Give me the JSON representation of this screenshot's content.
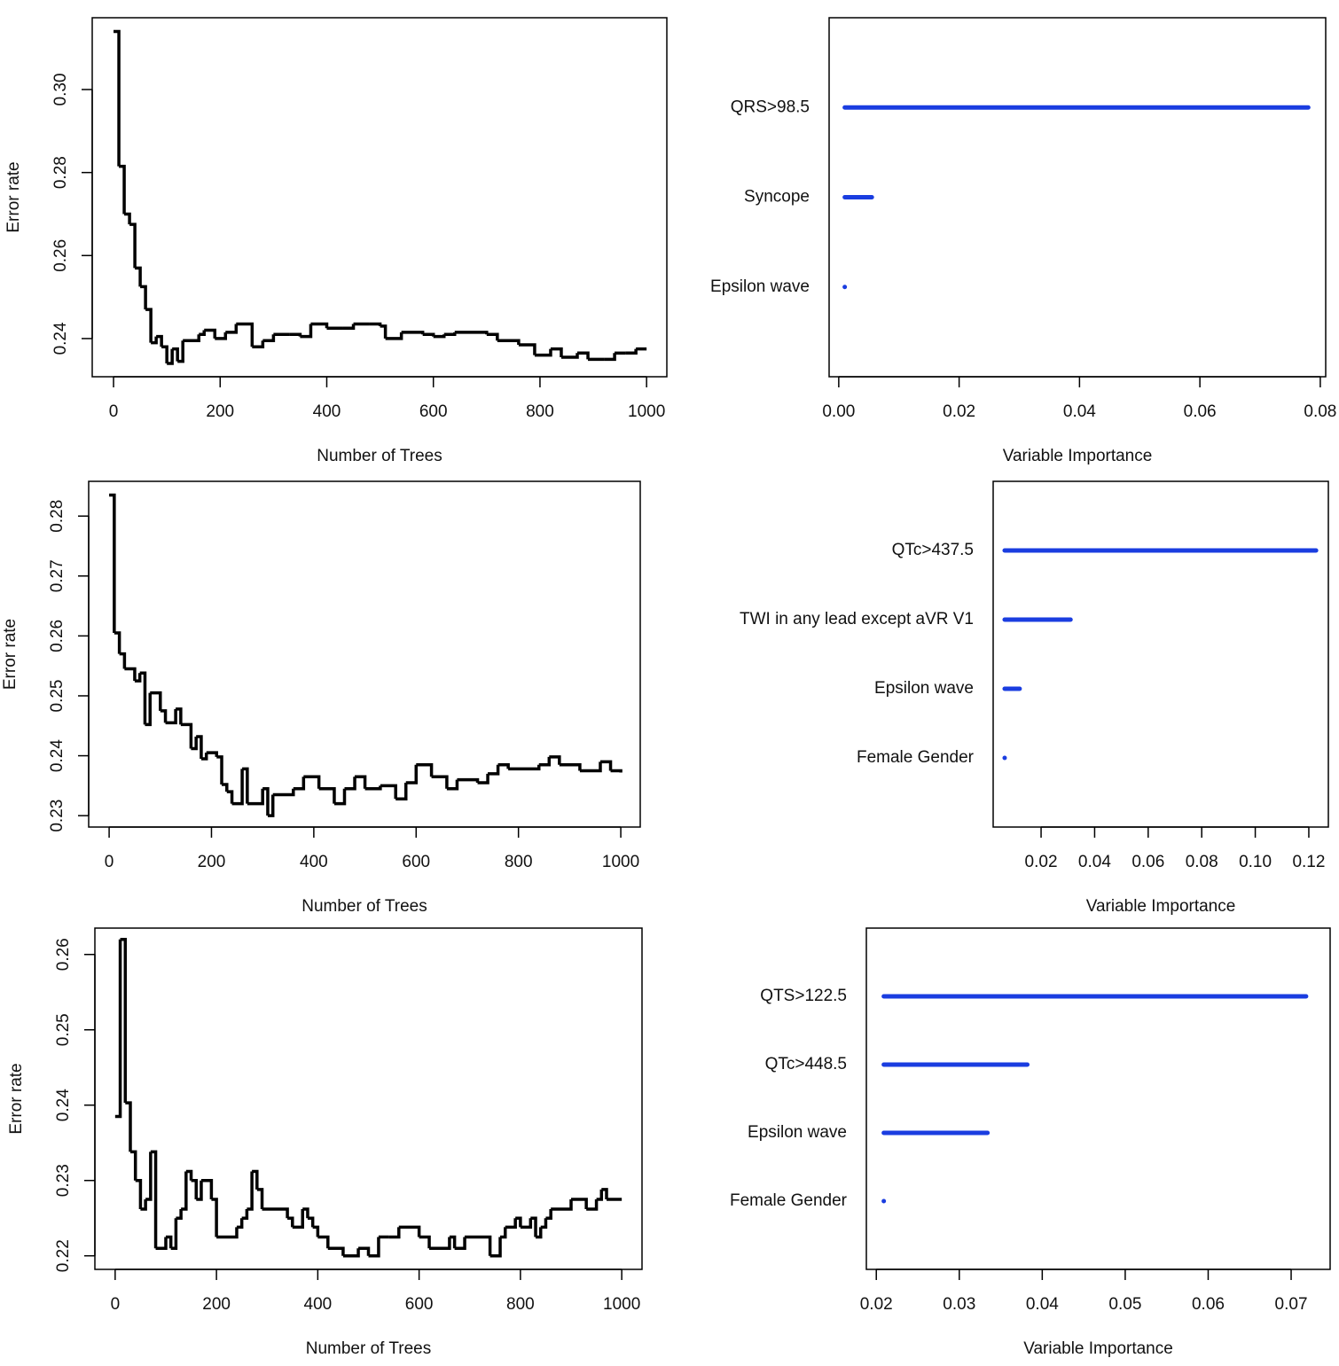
{
  "chart_data": [
    {
      "type": "line",
      "step": "post",
      "color": "#000000",
      "xlabel": "Number of Trees",
      "ylabel": "Error rate",
      "x": [
        0,
        10,
        20,
        30,
        40,
        50,
        60,
        70,
        80,
        90,
        100,
        110,
        120,
        130,
        160,
        170,
        190,
        210,
        230,
        260,
        280,
        300,
        330,
        350,
        370,
        400,
        430,
        450,
        480,
        500,
        510,
        540,
        580,
        600,
        620,
        640,
        700,
        720,
        760,
        790,
        820,
        840,
        870,
        890,
        920,
        940,
        960,
        980,
        1000
      ],
      "values": [
        0.314,
        0.2815,
        0.27,
        0.2675,
        0.257,
        0.2525,
        0.247,
        0.239,
        0.2405,
        0.238,
        0.234,
        0.2375,
        0.2345,
        0.2395,
        0.241,
        0.242,
        0.24,
        0.2415,
        0.2435,
        0.238,
        0.2395,
        0.241,
        0.241,
        0.2405,
        0.2435,
        0.2425,
        0.2425,
        0.2435,
        0.2435,
        0.243,
        0.24,
        0.2415,
        0.241,
        0.2405,
        0.241,
        0.2415,
        0.241,
        0.2395,
        0.2385,
        0.236,
        0.2375,
        0.2355,
        0.2365,
        0.235,
        0.235,
        0.2365,
        0.2365,
        0.2375,
        0.2375
      ],
      "xlim": [
        -40,
        1038
      ],
      "ylim": [
        0.2308,
        0.3173
      ],
      "xticks": [
        0,
        200,
        400,
        600,
        800,
        1000
      ],
      "yticks": [
        0.24,
        0.26,
        0.28,
        {
          "value": 0.3,
          "label": "0.30"
        }
      ]
    },
    {
      "type": "bar",
      "color": "#1a3de0",
      "xlabel": "Variable Importance",
      "categories": [
        "QRS>98.5",
        "Syncope",
        "Epsilon wave"
      ],
      "values": [
        0.078,
        0.0055,
        0.001
      ],
      "xlim": [
        -0.0016,
        0.0809
      ],
      "xticks": [
        {
          "value": 0,
          "label": "0.00"
        },
        0.02,
        0.04,
        0.06,
        0.08
      ]
    },
    {
      "type": "line",
      "step": "post",
      "color": "#000000",
      "xlabel": "Number of Trees",
      "ylabel": "Error rate",
      "x": [
        0,
        10,
        20,
        30,
        50,
        60,
        70,
        80,
        100,
        110,
        130,
        140,
        160,
        170,
        180,
        190,
        210,
        220,
        230,
        240,
        260,
        270,
        300,
        310,
        320,
        360,
        380,
        410,
        440,
        460,
        480,
        500,
        530,
        560,
        580,
        600,
        630,
        660,
        680,
        720,
        740,
        760,
        780,
        840,
        860,
        880,
        920,
        960,
        980,
        1000
      ],
      "values": [
        0.2835,
        0.2605,
        0.257,
        0.2545,
        0.2525,
        0.2538,
        0.2452,
        0.2505,
        0.2475,
        0.2455,
        0.2478,
        0.2452,
        0.2412,
        0.2432,
        0.2395,
        0.2405,
        0.2398,
        0.2352,
        0.234,
        0.232,
        0.2378,
        0.232,
        0.2345,
        0.23,
        0.2335,
        0.2345,
        0.2365,
        0.2345,
        0.232,
        0.2345,
        0.2365,
        0.2345,
        0.235,
        0.2328,
        0.2355,
        0.2385,
        0.2365,
        0.2345,
        0.236,
        0.2355,
        0.237,
        0.2385,
        0.2378,
        0.2385,
        0.2398,
        0.2385,
        0.2375,
        0.239,
        0.2375,
        0.2372
      ],
      "xlim": [
        -40,
        1038
      ],
      "ylim": [
        0.2281,
        0.2858
      ],
      "xticks": [
        0,
        200,
        400,
        600,
        800,
        1000
      ],
      "yticks": [
        0.23,
        0.24,
        0.25,
        0.26,
        0.27,
        0.28
      ]
    },
    {
      "type": "bar",
      "color": "#1a3de0",
      "xlabel": "Variable Importance",
      "categories": [
        "QTc>437.5",
        "TWI in any lead except aVR V1",
        "Epsilon wave",
        "Female Gender"
      ],
      "values": [
        0.1227,
        0.031,
        0.012,
        0.0064
      ],
      "xlim": [
        0.0021,
        0.1273
      ],
      "xticks": [
        0.02,
        0.04,
        0.06,
        0.08,
        {
          "value": 0.1,
          "label": "0.10"
        },
        0.12
      ]
    },
    {
      "type": "line",
      "step": "post",
      "color": "#000000",
      "xlabel": "Number of Trees",
      "ylabel": "Error rate",
      "x": [
        0,
        10,
        20,
        30,
        40,
        50,
        60,
        70,
        80,
        100,
        110,
        120,
        130,
        140,
        150,
        160,
        170,
        190,
        200,
        240,
        250,
        260,
        270,
        280,
        290,
        340,
        350,
        370,
        380,
        390,
        400,
        420,
        450,
        480,
        500,
        520,
        540,
        560,
        600,
        620,
        660,
        670,
        690,
        740,
        760,
        770,
        790,
        800,
        820,
        830,
        840,
        850,
        860,
        900,
        930,
        950,
        960,
        970,
        1000
      ],
      "values": [
        0.2385,
        0.262,
        0.2403,
        0.2338,
        0.23,
        0.2262,
        0.2275,
        0.2338,
        0.221,
        0.2225,
        0.221,
        0.225,
        0.2262,
        0.2312,
        0.23,
        0.2275,
        0.23,
        0.2275,
        0.2225,
        0.2238,
        0.225,
        0.2262,
        0.2312,
        0.2288,
        0.2262,
        0.225,
        0.2238,
        0.2262,
        0.225,
        0.2238,
        0.2225,
        0.221,
        0.22,
        0.221,
        0.22,
        0.2225,
        0.2225,
        0.2238,
        0.2225,
        0.221,
        0.2225,
        0.221,
        0.2225,
        0.22,
        0.2225,
        0.2238,
        0.225,
        0.2238,
        0.225,
        0.2225,
        0.2238,
        0.225,
        0.2262,
        0.2275,
        0.2262,
        0.2275,
        0.2288,
        0.2275,
        0.2275
      ],
      "xlim": [
        -40,
        1040
      ],
      "ylim": [
        0.2182,
        0.2635
      ],
      "xticks": [
        0,
        200,
        400,
        600,
        800,
        1000
      ],
      "yticks": [
        0.22,
        0.23,
        0.24,
        0.25,
        0.26
      ]
    },
    {
      "type": "bar",
      "color": "#1a3de0",
      "xlabel": "Variable Importance",
      "categories": [
        "QTS>122.5",
        "QTc>448.5",
        "Epsilon wave",
        "Female Gender"
      ],
      "values": [
        0.0718,
        0.0382,
        0.0334,
        0.0209
      ],
      "xlim": [
        0.0188,
        0.0747
      ],
      "xticks": [
        0.02,
        0.03,
        0.04,
        0.05,
        0.06,
        0.07
      ]
    }
  ]
}
